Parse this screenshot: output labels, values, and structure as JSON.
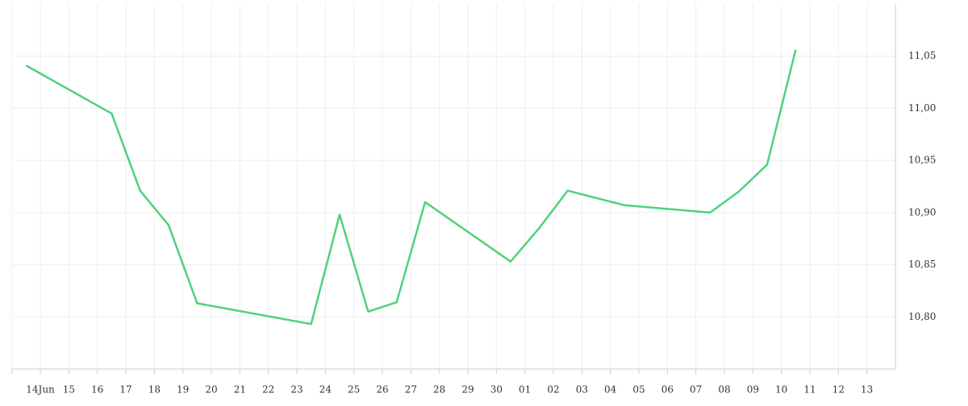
{
  "chart_data": {
    "type": "line",
    "categories": [
      null,
      "14Jun",
      "15",
      "16",
      "17",
      "18",
      "19",
      "20",
      "21",
      "22",
      "23",
      "24",
      "25",
      "26",
      "27",
      "28",
      "29",
      "30",
      "01",
      "02",
      "03",
      "04",
      "05",
      "06",
      "07",
      "08",
      "09",
      "10",
      "11",
      "12",
      "13"
    ],
    "series": [
      {
        "color": "#4fd27c",
        "values": [
          11.041,
          null,
          null,
          10.995,
          10.921,
          10.888,
          10.813,
          null,
          null,
          null,
          10.793,
          10.898,
          10.805,
          10.814,
          10.91,
          null,
          null,
          10.853,
          10.885,
          10.921,
          null,
          10.907,
          null,
          null,
          10.9,
          10.92,
          10.946,
          11.056,
          null,
          null,
          null
        ]
      }
    ],
    "ylim": [
      10.75,
      11.1
    ],
    "yticks": [
      {
        "value": 10.8,
        "label": "10,80"
      },
      {
        "value": 10.85,
        "label": "10,85"
      },
      {
        "value": 10.9,
        "label": "10,90"
      },
      {
        "value": 10.95,
        "label": "10,95"
      },
      {
        "value": 11.0,
        "label": "11,00"
      },
      {
        "value": 11.05,
        "label": "11,05"
      }
    ],
    "grid": true
  }
}
